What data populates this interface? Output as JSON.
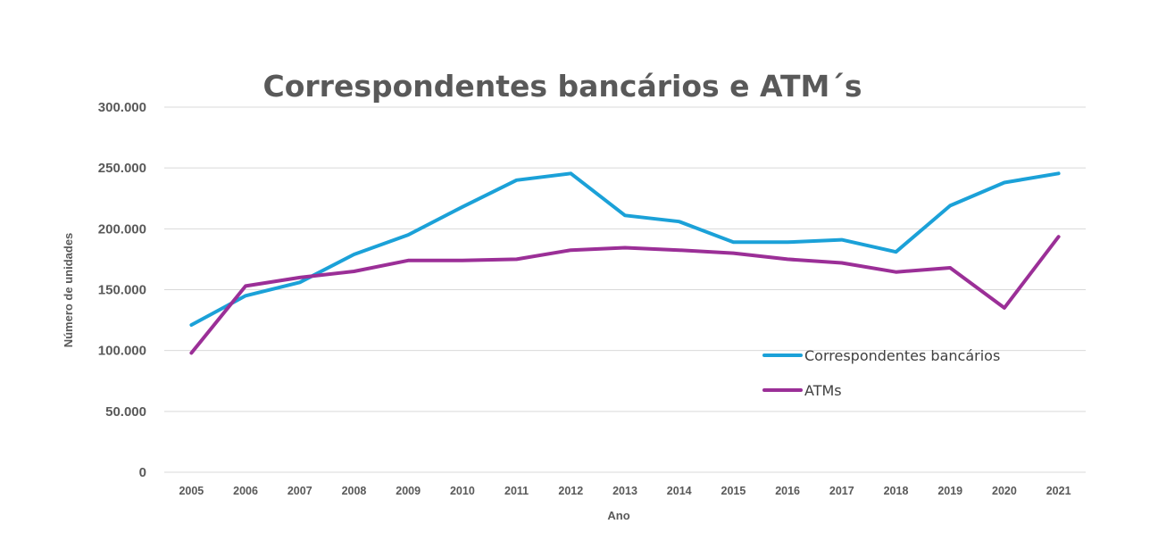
{
  "chart_data": {
    "type": "line",
    "title": "Correspondentes bancários e ATM´s",
    "xlabel": "Ano",
    "ylabel": "Número de unidades",
    "ylim": [
      0,
      300000
    ],
    "ytick_values": [
      0,
      50000,
      100000,
      150000,
      200000,
      250000,
      300000
    ],
    "ytick_labels": [
      "0",
      "50.000",
      "100.000",
      "150.000",
      "200.000",
      "250.000",
      "300.000"
    ],
    "grid": true,
    "legend_position": "center-right",
    "categories": [
      "2005",
      "2006",
      "2007",
      "2008",
      "2009",
      "2010",
      "2011",
      "2012",
      "2013",
      "2014",
      "2015",
      "2016",
      "2017",
      "2018",
      "2019",
      "2020",
      "2021"
    ],
    "series": [
      {
        "name": "Correspondentes bancários",
        "color": "#1ba1d8",
        "values": [
          121000,
          145000,
          156000,
          179000,
          195000,
          218000,
          240000,
          245500,
          211000,
          206000,
          189000,
          189000,
          191000,
          181000,
          219000,
          238000,
          245500
        ]
      },
      {
        "name": "ATMs",
        "color": "#9b2f97",
        "values": [
          98000,
          153000,
          160000,
          165000,
          174000,
          174000,
          175000,
          182500,
          184500,
          182500,
          180000,
          175000,
          172000,
          164500,
          168000,
          135000,
          193500
        ]
      }
    ]
  }
}
